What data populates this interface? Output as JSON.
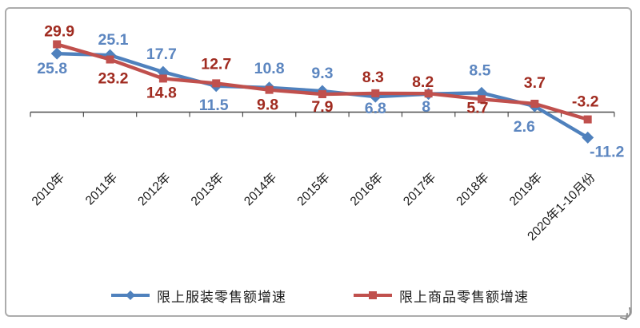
{
  "frame": {
    "border_color": "#acacac",
    "background": "#ffffff"
  },
  "chart_data": {
    "type": "line",
    "title": "",
    "xlabel": "",
    "ylabel": "",
    "gridlines": false,
    "value_axis_visible": false,
    "baseline_value": 0,
    "x_tick_rotation_deg": 45,
    "axis_color": "#4d4d4d",
    "category_label_color": "#1a1a1a",
    "categories": [
      "2010年",
      "2011年",
      "2012年",
      "2013年",
      "2014年",
      "2015年",
      "2016年",
      "2017年",
      "2018年",
      "2019年",
      "2020年1-10月份"
    ],
    "series": [
      {
        "name": "限上服装零售额增速",
        "marker": "diamond",
        "color": "#4f81bd",
        "label_color": "#5c86c0",
        "values": [
          25.8,
          25.1,
          17.7,
          11.5,
          10.8,
          9.3,
          6.8,
          8,
          8.5,
          2.6,
          -11.2
        ],
        "labels": [
          "25.8",
          "25.1",
          "17.7",
          "11.5",
          "10.8",
          "9.3",
          "6.8",
          "8",
          "8.5",
          "2.6",
          "-11.2"
        ],
        "label_side": [
          "below",
          "above",
          "above",
          "below",
          "above",
          "above",
          "below",
          "below",
          "above",
          "below",
          "below"
        ],
        "label_offsets": [
          [
            -6,
            25
          ],
          [
            4,
            -13
          ],
          [
            -2,
            -16
          ],
          [
            -3,
            30
          ],
          [
            0,
            -18
          ],
          [
            0,
            -16
          ],
          [
            0,
            21
          ],
          [
            -3,
            22
          ],
          [
            -2,
            -22
          ],
          [
            -13,
            32
          ],
          [
            24,
            24
          ]
        ]
      },
      {
        "name": "限上商品零售额增速",
        "marker": "square",
        "color": "#c0504d",
        "label_color": "#a02b20",
        "values": [
          29.9,
          23.2,
          14.8,
          12.7,
          9.8,
          7.9,
          8.3,
          8.2,
          5.7,
          3.7,
          -3.2
        ],
        "labels": [
          "29.9",
          "23.2",
          "14.8",
          "12.7",
          "9.8",
          "7.9",
          "8.3",
          "8.2",
          "5.7",
          "3.7",
          "-3.2"
        ],
        "label_side": [
          "above",
          "below",
          "below",
          "above",
          "below",
          "below",
          "above",
          "above",
          "below",
          "above",
          "above"
        ],
        "label_offsets": [
          [
            3,
            -10
          ],
          [
            4,
            30
          ],
          [
            -2,
            24
          ],
          [
            0,
            -18
          ],
          [
            -2,
            25
          ],
          [
            0,
            22
          ],
          [
            -3,
            -14
          ],
          [
            -7,
            -8
          ],
          [
            -5,
            17
          ],
          [
            0,
            -20
          ],
          [
            -3,
            -16
          ]
        ]
      }
    ],
    "legend": {
      "position": "bottom"
    }
  }
}
